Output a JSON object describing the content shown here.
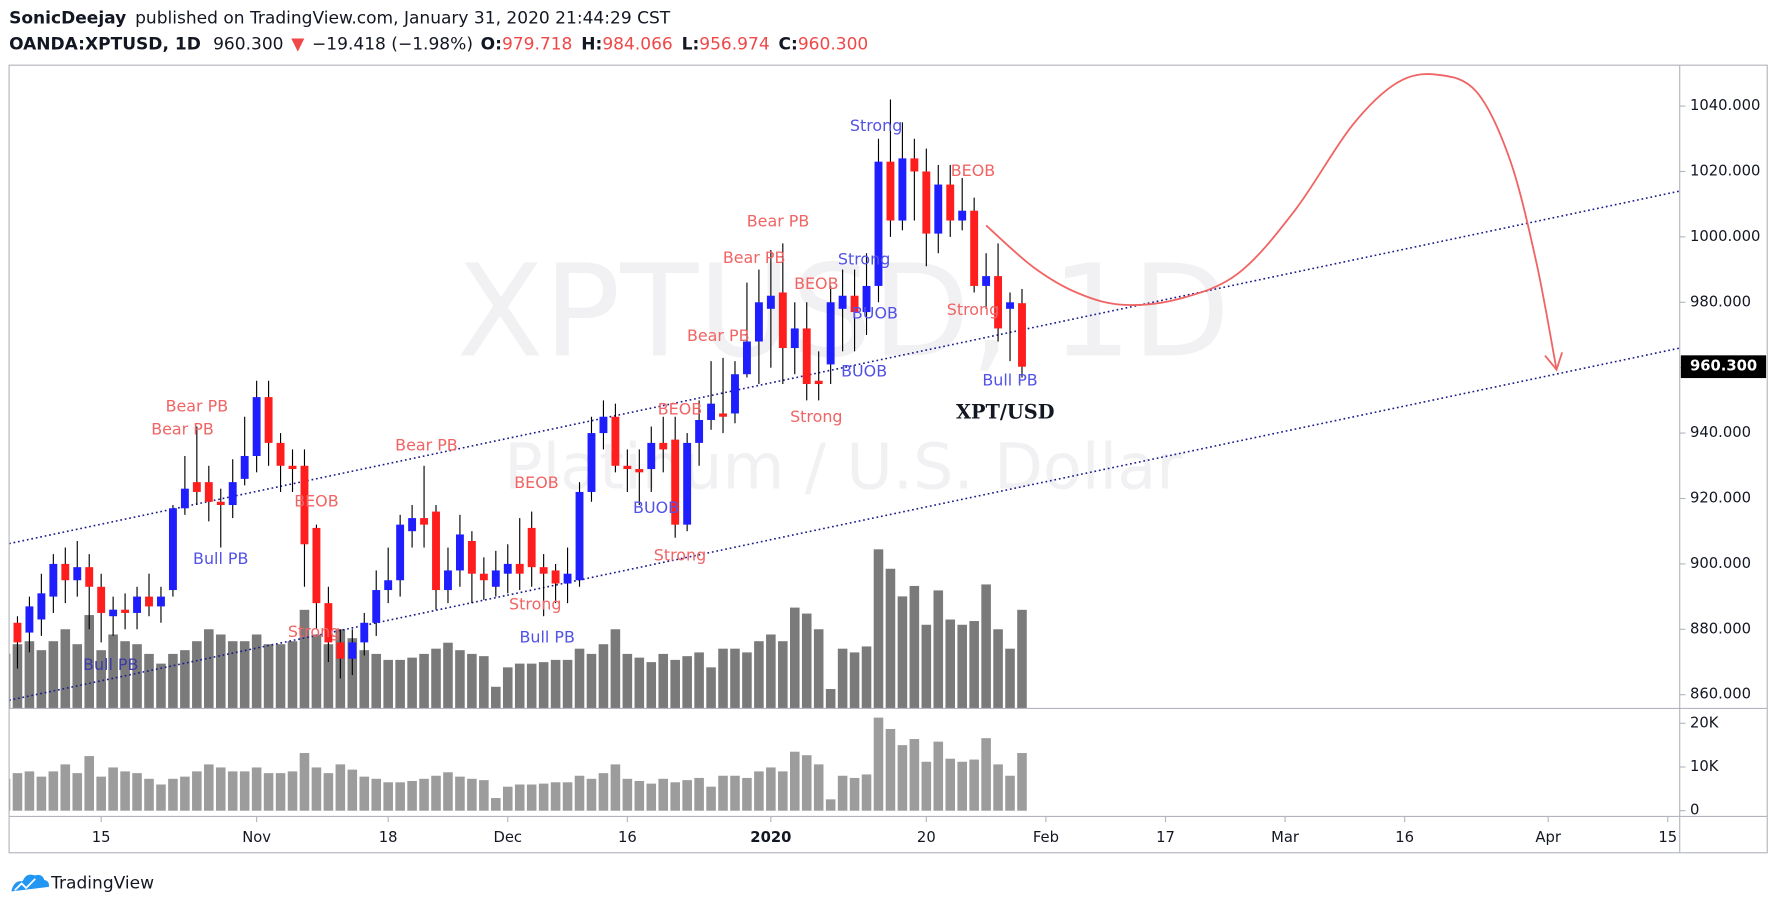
{
  "header": {
    "author": "SonicDeejay",
    "published": "published on TradingView.com, January 31, 2020 21:44:29 CST",
    "symbol": "OANDA:XPTUSD, 1D",
    "last": "960.300",
    "arrow": "▼",
    "change": "−19.418 (−1.98%)",
    "o_label": "O:",
    "o": "979.718",
    "h_label": "H:",
    "h": "984.066",
    "l_label": "L:",
    "l": "956.974",
    "c_label": "C:",
    "c": "960.300"
  },
  "watermark": {
    "title": "XPTUSD, 1D",
    "subtitle": "Platinum / U.S. Dollar"
  },
  "footer": "TradingView",
  "chart_data": {
    "type": "candlestick",
    "xlim": [
      0.3,
      140
    ],
    "xticks": [
      {
        "value": 8,
        "label": "15"
      },
      {
        "value": 21,
        "label": "Nov"
      },
      {
        "value": 32,
        "label": "18"
      },
      {
        "value": 42,
        "label": "Dec"
      },
      {
        "value": 52,
        "label": "16"
      },
      {
        "value": 64,
        "label": "2020"
      },
      {
        "value": 77,
        "label": "20"
      },
      {
        "value": 87,
        "label": "Feb"
      },
      {
        "value": 97,
        "label": "17"
      },
      {
        "value": 107,
        "label": "Mar"
      },
      {
        "value": 117,
        "label": "16"
      },
      {
        "value": 129,
        "label": "Apr"
      },
      {
        "value": 139,
        "label": "15"
      }
    ],
    "ylim": [
      855.8,
      1052.5
    ],
    "yticks": [
      {
        "value": 860,
        "label": "860.000"
      },
      {
        "value": 880,
        "label": "880.000"
      },
      {
        "value": 900,
        "label": "900.000"
      },
      {
        "value": 920,
        "label": "920.000"
      },
      {
        "value": 940,
        "label": "940.000"
      },
      {
        "value": 960,
        "label": "960.000"
      },
      {
        "value": 980,
        "label": "980.000"
      },
      {
        "value": 1000,
        "label": "1000.000"
      },
      {
        "value": 1020,
        "label": "1020.000"
      },
      {
        "value": 1040,
        "label": "1040.000"
      }
    ],
    "up_color": "#1e1eff",
    "down_color": "#ff1e1e",
    "open": [
      889,
      882,
      879,
      883,
      890,
      900,
      895,
      899,
      893,
      884,
      886,
      885,
      890,
      887,
      892,
      917,
      925,
      925,
      919,
      918,
      926,
      933,
      951,
      937,
      930,
      930,
      911,
      888,
      876,
      871,
      876,
      882,
      892,
      895,
      910,
      914,
      916,
      892,
      898,
      907,
      897,
      893,
      897,
      900,
      911,
      899,
      898,
      894,
      895,
      922,
      940,
      945,
      930,
      929,
      929,
      937,
      938,
      912,
      937,
      944,
      946,
      946,
      958,
      968,
      978,
      983,
      966,
      972,
      956,
      961,
      978,
      982,
      977,
      985,
      1023,
      1005,
      1024,
      1020,
      1001,
      1016,
      1005,
      1008,
      985,
      988,
      978,
      979.718
    ],
    "high": [
      893,
      884,
      890,
      897,
      903,
      905,
      907,
      903,
      897,
      890,
      891,
      893,
      897,
      893,
      918,
      933,
      942,
      930,
      923,
      932,
      945,
      956,
      956,
      940,
      935,
      935,
      912,
      893,
      880,
      880,
      885,
      898,
      905,
      915,
      918,
      930,
      918,
      905,
      915,
      910,
      902,
      904,
      906,
      914,
      916,
      903,
      900,
      905,
      925,
      945,
      950,
      949,
      935,
      935,
      942,
      945,
      945,
      940,
      950,
      962,
      963,
      962,
      986,
      990,
      996,
      998,
      980,
      980,
      965,
      985,
      990,
      990,
      995,
      1030,
      1042,
      1035,
      1030,
      1027,
      1022,
      1022,
      1018,
      1012,
      995,
      998,
      983,
      984.066
    ],
    "low": [
      872,
      868,
      873,
      878,
      885,
      888,
      890,
      880,
      876,
      878,
      880,
      880,
      884,
      882,
      890,
      915,
      918,
      913,
      905,
      914,
      924,
      928,
      930,
      922,
      922,
      893,
      880,
      870,
      865,
      866,
      872,
      878,
      888,
      890,
      905,
      905,
      886,
      888,
      893,
      888,
      889,
      890,
      891,
      892,
      893,
      884,
      888,
      888,
      893,
      919,
      935,
      928,
      922,
      918,
      922,
      928,
      908,
      910,
      930,
      941,
      940,
      943,
      957,
      955,
      960,
      955,
      958,
      950,
      950,
      955,
      965,
      965,
      970,
      980,
      1000,
      1002,
      1005,
      991,
      995,
      1000,
      1002,
      983,
      978,
      968,
      962,
      956.974
    ],
    "close": [
      880,
      876,
      887,
      891,
      900,
      895,
      899,
      893,
      885,
      886,
      885,
      890,
      887,
      890,
      917,
      923,
      922,
      919,
      918,
      925,
      933,
      951,
      937,
      930,
      929,
      906,
      888,
      876,
      871,
      876,
      882,
      892,
      895,
      912,
      914,
      912,
      892,
      898,
      909,
      897,
      895,
      898,
      900,
      897,
      899,
      897,
      894,
      897,
      922,
      940,
      945,
      930,
      929,
      928,
      937,
      935,
      912,
      937,
      944,
      949,
      945,
      958,
      968,
      980,
      982,
      966,
      972,
      955,
      955,
      980,
      982,
      977,
      985,
      1023,
      1005,
      1024,
      1020,
      1001,
      1016,
      1005,
      1008,
      985,
      988,
      972,
      980,
      960.3
    ],
    "last_price_label": "960.300",
    "volume": {
      "color": "#7a7a7a",
      "pane_color": "#9c9c9c",
      "ylim": [
        0,
        23400
      ],
      "yticks": [
        0,
        {
          "value": 10000,
          "label": "10K"
        },
        {
          "value": 20000,
          "label": "20K"
        }
      ],
      "values": [
        7300,
        8600,
        9000,
        7800,
        9000,
        10600,
        8600,
        12500,
        7800,
        9900,
        9000,
        8600,
        7300,
        6000,
        7300,
        7800,
        9000,
        10600,
        9900,
        9000,
        9000,
        9900,
        8600,
        8600,
        9000,
        13200,
        9900,
        8600,
        10600,
        9400,
        7800,
        7300,
        6500,
        6500,
        6800,
        7300,
        8000,
        8800,
        7800,
        7300,
        7000,
        2900,
        5500,
        6000,
        6000,
        6200,
        6500,
        6500,
        8000,
        7300,
        8600,
        10600,
        7300,
        6800,
        6200,
        7300,
        6500,
        7000,
        7500,
        5500,
        8000,
        8000,
        7500,
        9000,
        9900,
        9000,
        13500,
        12700,
        10600,
        2600,
        8000,
        7500,
        8300,
        21300,
        18700,
        15000,
        16400,
        11200,
        15800,
        11900,
        11200,
        11700,
        16600,
        10600,
        8000,
        13200
      ]
    },
    "trendlines": [
      {
        "color": "#1a1a8c",
        "x": [
          0.3,
          140
        ],
        "y": [
          906.2,
          1014
        ]
      },
      {
        "color": "#1a1a8c",
        "x": [
          0.3,
          140
        ],
        "y": [
          858.3,
          966
        ]
      }
    ],
    "drawing": {
      "color": "#f06464",
      "x": [
        82.0,
        86.0,
        89.8,
        93.6,
        98.3,
        103.1,
        107.8,
        112.6,
        116.4,
        119.7,
        123.0,
        125.8,
        128.0,
        129.7
      ],
      "y": [
        1003.5,
        990.6,
        982.6,
        979.2,
        981.2,
        988.9,
        1008,
        1034,
        1047.2,
        1049.6,
        1044.4,
        1023.6,
        992.4,
        959.4
      ]
    },
    "label": {
      "text": "XPT/USD",
      "x": 83.6,
      "y": 946
    },
    "annotations": [
      {
        "text": "Bear PB",
        "x": 16,
        "y": 948,
        "color": "#f06464"
      },
      {
        "text": "Bear PB",
        "x": 14.8,
        "y": 941,
        "color": "#f06464"
      },
      {
        "text": "Bull PB",
        "x": 18,
        "y": 901.4,
        "color": "#5252e6"
      },
      {
        "text": "Bull PB",
        "x": 8.8,
        "y": 869,
        "color": "#3a3aa8"
      },
      {
        "text": "BEOB",
        "x": 26,
        "y": 919,
        "color": "#f06464"
      },
      {
        "text": "Strong",
        "x": 25.8,
        "y": 879,
        "color": "#f06464"
      },
      {
        "text": "Bear PB",
        "x": 35.2,
        "y": 936,
        "color": "#f06464"
      },
      {
        "text": "BEOB",
        "x": 44.4,
        "y": 924.6,
        "color": "#f06464"
      },
      {
        "text": "Strong",
        "x": 44.3,
        "y": 887.5,
        "color": "#f06464"
      },
      {
        "text": "Bull PB",
        "x": 45.3,
        "y": 877.4,
        "color": "#5252e6"
      },
      {
        "text": "BEOB",
        "x": 56.4,
        "y": 947,
        "color": "#f06464"
      },
      {
        "text": "BUOB",
        "x": 54.4,
        "y": 917,
        "color": "#5252e6"
      },
      {
        "text": "Strong",
        "x": 56.4,
        "y": 902.4,
        "color": "#f06464"
      },
      {
        "text": "Bear PB",
        "x": 59.6,
        "y": 969.5,
        "color": "#f06464"
      },
      {
        "text": "Bear PB",
        "x": 62.6,
        "y": 993.4,
        "color": "#f06464"
      },
      {
        "text": "Bear PB",
        "x": 64.6,
        "y": 1004.6,
        "color": "#f06464"
      },
      {
        "text": "BEOB",
        "x": 67.8,
        "y": 985.4,
        "color": "#f06464"
      },
      {
        "text": "Strong",
        "x": 67.8,
        "y": 944.8,
        "color": "#f06464"
      },
      {
        "text": "Strong",
        "x": 71.8,
        "y": 993,
        "color": "#5252e6"
      },
      {
        "text": "BUOB",
        "x": 72.7,
        "y": 976.4,
        "color": "#5252e6"
      },
      {
        "text": "BUOB",
        "x": 71.8,
        "y": 958.7,
        "color": "#5252e6"
      },
      {
        "text": "Strong",
        "x": 72.8,
        "y": 1033.7,
        "color": "#5252e6"
      },
      {
        "text": "BEOB",
        "x": 80.9,
        "y": 1020,
        "color": "#f06464"
      },
      {
        "text": "Strong",
        "x": 80.9,
        "y": 977.5,
        "color": "#f06464"
      },
      {
        "text": "Bull PB",
        "x": 84,
        "y": 956,
        "color": "#5252e6"
      }
    ]
  }
}
